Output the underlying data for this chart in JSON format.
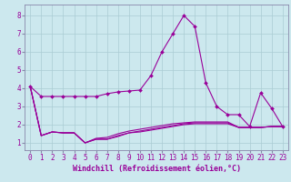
{
  "xlabel": "Windchill (Refroidissement éolien,°C)",
  "bg_color": "#cce8ee",
  "grid_color": "#aaccd4",
  "line_color": "#990099",
  "spine_color": "#8888aa",
  "x_ticks": [
    0,
    1,
    2,
    3,
    4,
    5,
    6,
    7,
    8,
    9,
    10,
    11,
    12,
    13,
    14,
    15,
    16,
    17,
    18,
    19,
    20,
    21,
    22,
    23
  ],
  "y_ticks": [
    1,
    2,
    3,
    4,
    5,
    6,
    7,
    8
  ],
  "ylim": [
    0.6,
    8.6
  ],
  "xlim": [
    -0.5,
    23.5
  ],
  "series": [
    [
      4.1,
      3.55,
      3.55,
      3.55,
      3.55,
      3.55,
      3.55,
      3.7,
      3.8,
      3.85,
      3.9,
      4.7,
      6.0,
      7.0,
      8.0,
      7.4,
      4.3,
      3.0,
      2.55,
      2.55,
      1.9,
      3.75,
      2.9,
      1.9
    ],
    [
      4.1,
      1.4,
      1.6,
      1.55,
      1.55,
      1.0,
      1.2,
      1.2,
      1.35,
      1.55,
      1.6,
      1.7,
      1.8,
      1.9,
      2.0,
      2.05,
      2.05,
      2.05,
      2.05,
      1.85,
      1.85,
      1.85,
      1.9,
      1.9
    ],
    [
      4.1,
      1.4,
      1.6,
      1.55,
      1.55,
      1.0,
      1.25,
      1.3,
      1.5,
      1.65,
      1.75,
      1.85,
      1.95,
      2.05,
      2.1,
      2.15,
      2.15,
      2.15,
      2.15,
      1.85,
      1.85,
      1.85,
      1.9,
      1.9
    ],
    [
      4.1,
      1.4,
      1.6,
      1.55,
      1.55,
      1.0,
      1.2,
      1.2,
      1.4,
      1.55,
      1.65,
      1.75,
      1.85,
      1.95,
      2.05,
      2.1,
      2.1,
      2.1,
      2.1,
      1.85,
      1.85,
      1.85,
      1.9,
      1.9
    ]
  ],
  "tick_fontsize": 5.5,
  "xlabel_fontsize": 6.0
}
